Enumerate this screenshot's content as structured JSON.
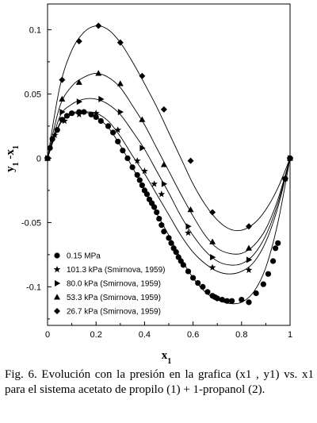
{
  "caption": "Fig. 6. Evolución con la presión en la grafica (x1 , y1) vs. x1 para el sistema acetato de propilo (1) + 1-propanol (2).",
  "chart_data": {
    "type": "scatter",
    "xlabel": "x1",
    "ylabel": "y1 -x1",
    "xlim": [
      0,
      1
    ],
    "ylim": [
      -0.13,
      0.12
    ],
    "x_ticks": [
      "0",
      "0.2",
      "0.4",
      "0.6",
      "0.8",
      "1"
    ],
    "y_ticks": [
      "0.1",
      "0.05",
      "0",
      "-0.05",
      "-0.1"
    ],
    "grid": false,
    "legend_position": "bottom-left",
    "series": [
      {
        "name": "0.15 MPa",
        "marker": "circle",
        "points": [
          [
            0,
            0
          ],
          [
            0.01,
            0.008
          ],
          [
            0.02,
            0.015
          ],
          [
            0.04,
            0.022
          ],
          [
            0.06,
            0.03
          ],
          [
            0.08,
            0.033
          ],
          [
            0.1,
            0.035
          ],
          [
            0.13,
            0.036
          ],
          [
            0.15,
            0.036
          ],
          [
            0.18,
            0.034
          ],
          [
            0.2,
            0.032
          ],
          [
            0.22,
            0.029
          ],
          [
            0.25,
            0.025
          ],
          [
            0.27,
            0.02
          ],
          [
            0.29,
            0.013
          ],
          [
            0.31,
            0.006
          ],
          [
            0.33,
            0.0
          ],
          [
            0.35,
            -0.007
          ],
          [
            0.37,
            -0.013
          ],
          [
            0.38,
            -0.017
          ],
          [
            0.39,
            -0.021
          ],
          [
            0.4,
            -0.025
          ],
          [
            0.41,
            -0.028
          ],
          [
            0.42,
            -0.032
          ],
          [
            0.43,
            -0.035
          ],
          [
            0.44,
            -0.038
          ],
          [
            0.45,
            -0.042
          ],
          [
            0.46,
            -0.047
          ],
          [
            0.47,
            -0.052
          ],
          [
            0.48,
            -0.057
          ],
          [
            0.5,
            -0.062
          ],
          [
            0.51,
            -0.066
          ],
          [
            0.52,
            -0.07
          ],
          [
            0.53,
            -0.073
          ],
          [
            0.54,
            -0.077
          ],
          [
            0.55,
            -0.08
          ],
          [
            0.56,
            -0.083
          ],
          [
            0.58,
            -0.088
          ],
          [
            0.6,
            -0.093
          ],
          [
            0.62,
            -0.097
          ],
          [
            0.64,
            -0.1
          ],
          [
            0.66,
            -0.104
          ],
          [
            0.68,
            -0.107
          ],
          [
            0.69,
            -0.108
          ],
          [
            0.7,
            -0.109
          ],
          [
            0.72,
            -0.11
          ],
          [
            0.74,
            -0.111
          ],
          [
            0.76,
            -0.111
          ],
          [
            0.8,
            -0.11
          ],
          [
            0.83,
            -0.112
          ],
          [
            0.86,
            -0.105
          ],
          [
            0.89,
            -0.098
          ],
          [
            0.91,
            -0.09
          ],
          [
            0.93,
            -0.08
          ],
          [
            0.94,
            -0.07
          ],
          [
            0.95,
            -0.066
          ],
          [
            0.98,
            -0.016
          ],
          [
            1.0,
            0
          ]
        ]
      },
      {
        "name": "101.3 kPa (Smirnova, 1959)",
        "marker": "star",
        "points": [
          [
            0,
            0
          ],
          [
            0.03,
            0.018
          ],
          [
            0.07,
            0.029
          ],
          [
            0.13,
            0.034
          ],
          [
            0.2,
            0.035
          ],
          [
            0.29,
            0.022
          ],
          [
            0.37,
            -0.002
          ],
          [
            0.4,
            -0.01
          ],
          [
            0.44,
            -0.02
          ],
          [
            0.47,
            -0.028
          ],
          [
            0.58,
            -0.058
          ],
          [
            0.68,
            -0.085
          ],
          [
            0.83,
            -0.087
          ],
          [
            0.98,
            -0.016
          ],
          [
            1.0,
            0
          ]
        ]
      },
      {
        "name": "80.0 kPa (Smirnova, 1959)",
        "marker": "triangle-right",
        "points": [
          [
            0,
            0
          ],
          [
            0.06,
            0.036
          ],
          [
            0.13,
            0.044
          ],
          [
            0.22,
            0.046
          ],
          [
            0.3,
            0.036
          ],
          [
            0.39,
            0.008
          ],
          [
            0.48,
            -0.02
          ],
          [
            0.58,
            -0.053
          ],
          [
            0.68,
            -0.077
          ],
          [
            0.83,
            -0.079
          ],
          [
            1.0,
            0
          ]
        ]
      },
      {
        "name": "53.3 kPa (Smirnova, 1959)",
        "marker": "triangle-up",
        "points": [
          [
            0,
            0
          ],
          [
            0.06,
            0.046
          ],
          [
            0.13,
            0.059
          ],
          [
            0.21,
            0.066
          ],
          [
            0.3,
            0.058
          ],
          [
            0.39,
            0.03
          ],
          [
            0.48,
            -0.005
          ],
          [
            0.59,
            -0.04
          ],
          [
            0.68,
            -0.065
          ],
          [
            0.83,
            -0.07
          ],
          [
            1.0,
            0
          ]
        ]
      },
      {
        "name": "26.7 kPa (Smirnova, 1959)",
        "marker": "diamond",
        "points": [
          [
            0,
            0
          ],
          [
            0.06,
            0.061
          ],
          [
            0.13,
            0.091
          ],
          [
            0.21,
            0.103
          ],
          [
            0.3,
            0.09
          ],
          [
            0.39,
            0.064
          ],
          [
            0.48,
            0.038
          ],
          [
            0.59,
            -0.002
          ],
          [
            0.68,
            -0.042
          ],
          [
            0.83,
            -0.053
          ],
          [
            1.0,
            0
          ]
        ]
      }
    ],
    "curves": [
      {
        "name": "0.15 MPa",
        "points": [
          [
            0,
            0
          ],
          [
            0.05,
            0.027
          ],
          [
            0.1,
            0.035
          ],
          [
            0.15,
            0.036
          ],
          [
            0.2,
            0.032
          ],
          [
            0.25,
            0.024
          ],
          [
            0.3,
            0.01
          ],
          [
            0.35,
            -0.007
          ],
          [
            0.4,
            -0.025
          ],
          [
            0.45,
            -0.043
          ],
          [
            0.5,
            -0.06
          ],
          [
            0.55,
            -0.078
          ],
          [
            0.6,
            -0.093
          ],
          [
            0.65,
            -0.104
          ],
          [
            0.7,
            -0.11
          ],
          [
            0.75,
            -0.113
          ],
          [
            0.8,
            -0.112
          ],
          [
            0.85,
            -0.104
          ],
          [
            0.9,
            -0.085
          ],
          [
            0.95,
            -0.05
          ],
          [
            1.0,
            0
          ]
        ]
      },
      {
        "name": "101.3 kPa",
        "points": [
          [
            0,
            0
          ],
          [
            0.05,
            0.026
          ],
          [
            0.1,
            0.034
          ],
          [
            0.15,
            0.036
          ],
          [
            0.2,
            0.035
          ],
          [
            0.25,
            0.029
          ],
          [
            0.3,
            0.017
          ],
          [
            0.35,
            0.002
          ],
          [
            0.4,
            -0.012
          ],
          [
            0.45,
            -0.028
          ],
          [
            0.5,
            -0.044
          ],
          [
            0.55,
            -0.06
          ],
          [
            0.6,
            -0.073
          ],
          [
            0.65,
            -0.082
          ],
          [
            0.7,
            -0.088
          ],
          [
            0.75,
            -0.09
          ],
          [
            0.8,
            -0.088
          ],
          [
            0.85,
            -0.081
          ],
          [
            0.9,
            -0.065
          ],
          [
            0.95,
            -0.038
          ],
          [
            1.0,
            0
          ]
        ]
      },
      {
        "name": "80.0 kPa",
        "points": [
          [
            0,
            0
          ],
          [
            0.05,
            0.032
          ],
          [
            0.1,
            0.042
          ],
          [
            0.15,
            0.046
          ],
          [
            0.2,
            0.046
          ],
          [
            0.25,
            0.042
          ],
          [
            0.3,
            0.034
          ],
          [
            0.35,
            0.021
          ],
          [
            0.4,
            0.007
          ],
          [
            0.45,
            -0.01
          ],
          [
            0.5,
            -0.027
          ],
          [
            0.55,
            -0.045
          ],
          [
            0.6,
            -0.06
          ],
          [
            0.65,
            -0.072
          ],
          [
            0.7,
            -0.08
          ],
          [
            0.75,
            -0.083
          ],
          [
            0.8,
            -0.082
          ],
          [
            0.85,
            -0.075
          ],
          [
            0.9,
            -0.06
          ],
          [
            0.95,
            -0.035
          ],
          [
            1.0,
            0
          ]
        ]
      },
      {
        "name": "53.3 kPa",
        "points": [
          [
            0,
            0
          ],
          [
            0.05,
            0.04
          ],
          [
            0.1,
            0.056
          ],
          [
            0.15,
            0.063
          ],
          [
            0.2,
            0.066
          ],
          [
            0.25,
            0.063
          ],
          [
            0.3,
            0.055
          ],
          [
            0.35,
            0.041
          ],
          [
            0.4,
            0.026
          ],
          [
            0.45,
            0.008
          ],
          [
            0.5,
            -0.01
          ],
          [
            0.55,
            -0.028
          ],
          [
            0.6,
            -0.045
          ],
          [
            0.65,
            -0.06
          ],
          [
            0.7,
            -0.07
          ],
          [
            0.75,
            -0.074
          ],
          [
            0.8,
            -0.074
          ],
          [
            0.85,
            -0.068
          ],
          [
            0.9,
            -0.055
          ],
          [
            0.95,
            -0.032
          ],
          [
            1.0,
            0
          ]
        ]
      },
      {
        "name": "26.7 kPa",
        "points": [
          [
            0,
            0
          ],
          [
            0.05,
            0.055
          ],
          [
            0.1,
            0.084
          ],
          [
            0.15,
            0.098
          ],
          [
            0.2,
            0.103
          ],
          [
            0.25,
            0.1
          ],
          [
            0.3,
            0.09
          ],
          [
            0.35,
            0.075
          ],
          [
            0.4,
            0.058
          ],
          [
            0.45,
            0.04
          ],
          [
            0.5,
            0.02
          ],
          [
            0.55,
            0.0
          ],
          [
            0.6,
            -0.02
          ],
          [
            0.65,
            -0.036
          ],
          [
            0.7,
            -0.048
          ],
          [
            0.75,
            -0.055
          ],
          [
            0.8,
            -0.056
          ],
          [
            0.85,
            -0.051
          ],
          [
            0.9,
            -0.04
          ],
          [
            0.95,
            -0.023
          ],
          [
            1.0,
            0
          ]
        ]
      }
    ]
  }
}
